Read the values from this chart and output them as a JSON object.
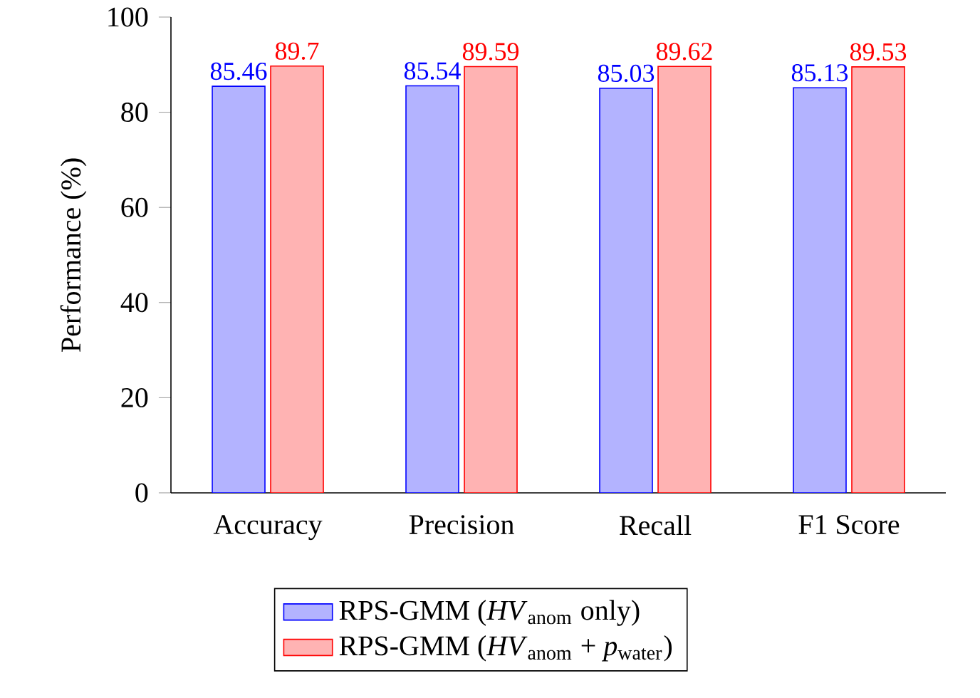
{
  "chart_data": {
    "type": "bar",
    "ylabel": "Performance (%)",
    "categories": [
      "Accuracy",
      "Precision",
      "Recall",
      "F1 Score"
    ],
    "series": [
      {
        "name": "RPS-GMM (*HV*$_{anom}$ only)",
        "color": "#b3b3ff",
        "values": [
          85.46,
          85.54,
          85.03,
          85.13
        ]
      },
      {
        "name": "RPS-GMM (*HV*$_{anom}$ + *p*$_{water}$)",
        "color": "#ffb3b3",
        "values": [
          89.7,
          89.59,
          89.62,
          89.53
        ]
      }
    ],
    "ylim": [
      0,
      100
    ],
    "yticks": [
      0,
      20,
      40,
      60,
      80,
      100
    ],
    "data_labels": true,
    "legend": "bottom",
    "grid": false
  }
}
